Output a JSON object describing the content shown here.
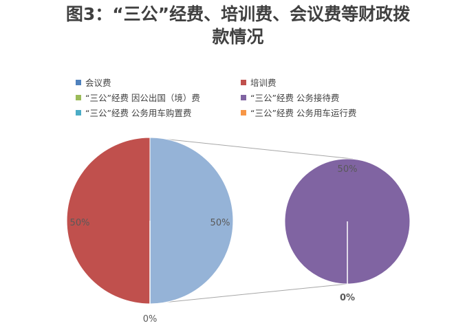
{
  "chart_data": {
    "type": "pie",
    "subtype": "pie-of-pie",
    "title_line1": "图3：“三公”经费、培训费、会议费等财政拨",
    "title_line2": "款情况",
    "legend_placement": "top",
    "series": [
      {
        "name": "会议费",
        "value": 0,
        "color": "#4f81bd"
      },
      {
        "name": "培训费",
        "value": 50,
        "color": "#c0504d"
      },
      {
        "name": "“三公”经费 因公出国（境）费",
        "value": 0,
        "color": "#9bbb59"
      },
      {
        "name": "“三公”经费 公务接待费",
        "value": 50,
        "color": "#8064a2"
      },
      {
        "name": "“三公”经费 公务用车购置费",
        "value": 0,
        "color": "#4bacc6"
      },
      {
        "name": "“三公”经费 公务用车运行费",
        "value": 0,
        "color": "#f79646"
      }
    ],
    "main_pie": {
      "other_value": 50,
      "other_color": "#95b3d7"
    },
    "data_labels": {
      "main_left": "50%",
      "main_right": "50%",
      "main_bottom": "0%",
      "secondary_top": "50%",
      "secondary_bottom": "0%"
    }
  }
}
